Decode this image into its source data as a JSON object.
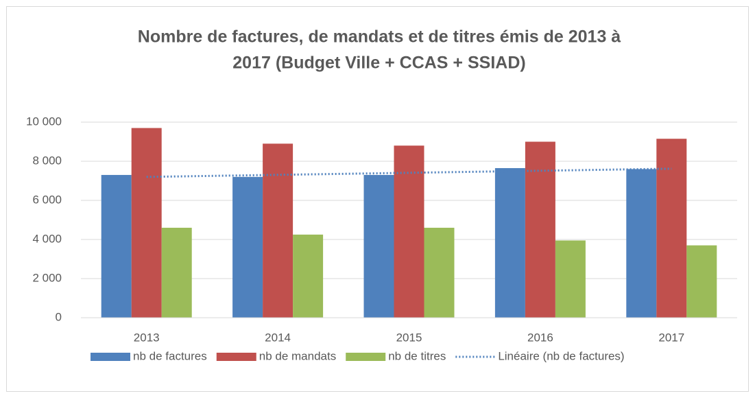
{
  "chart_data": {
    "type": "bar",
    "title": [
      "Nombre de factures, de mandats et de titres émis de 2013 à",
      "2017 (Budget Ville + CCAS + SSIAD)"
    ],
    "categories": [
      "2013",
      "2014",
      "2015",
      "2016",
      "2017"
    ],
    "series": [
      {
        "name": "nb de factures",
        "color": "#4f81bd",
        "values": [
          7300,
          7200,
          7300,
          7650,
          7600
        ]
      },
      {
        "name": "nb de mandats",
        "color": "#c0504d",
        "values": [
          9700,
          8900,
          8800,
          9000,
          9150
        ]
      },
      {
        "name": "nb de titres",
        "color": "#9bbb59",
        "values": [
          4600,
          4250,
          4600,
          3950,
          3700
        ]
      },
      {
        "name": "Linéaire (nb de factures)",
        "color": "#4f81bd",
        "type": "line",
        "dash": "dotted",
        "values": [
          7200,
          7305,
          7410,
          7515,
          7620
        ]
      }
    ],
    "ylim": [
      0,
      10000
    ],
    "yticks": [
      0,
      {
        "value": 2000,
        "label": "2 000"
      },
      {
        "value": 4000,
        "label": "4 000"
      },
      {
        "value": 6000,
        "label": "6 000"
      },
      {
        "value": 8000,
        "label": "8 000"
      },
      {
        "value": 10000,
        "label": "10 000"
      }
    ],
    "grid": true,
    "legend": "bottom"
  }
}
